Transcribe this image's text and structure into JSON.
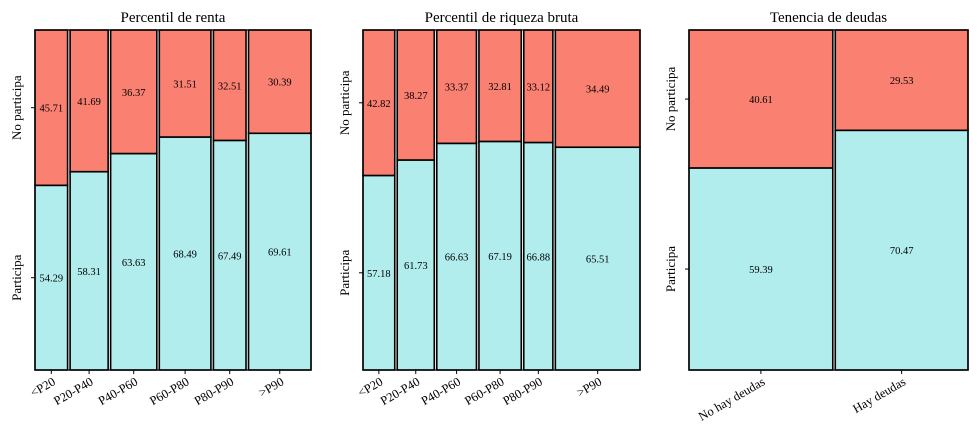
{
  "colors": {
    "no_participa": "#fa8072",
    "participa": "#b2eded",
    "border": "#000000"
  },
  "chart_data": [
    {
      "type": "mosaic",
      "title": "Percentil de renta",
      "ytick_labels": [
        "No participa",
        "Participa"
      ],
      "categories": [
        {
          "label": "<P20",
          "share": 0.12,
          "participa": 54.29,
          "no_participa": 45.71
        },
        {
          "label": "P20-P40",
          "share": 0.14,
          "participa": 58.31,
          "no_participa": 41.69
        },
        {
          "label": "P40-P60",
          "share": 0.17,
          "participa": 63.63,
          "no_participa": 36.37
        },
        {
          "label": "P60-P80",
          "share": 0.19,
          "participa": 68.49,
          "no_participa": 31.51
        },
        {
          "label": "P80-P90",
          "share": 0.12,
          "participa": 67.49,
          "no_participa": 32.51
        },
        {
          "label": ">P90",
          "share": 0.23,
          "participa": 69.61,
          "no_participa": 30.39
        }
      ]
    },
    {
      "type": "mosaic",
      "title": "Percentil de riqueza bruta",
      "ytick_labels": [
        "No participa",
        "Participa"
      ],
      "categories": [
        {
          "label": "<P20",
          "share": 0.12,
          "participa": 57.18,
          "no_participa": 42.82
        },
        {
          "label": "P20-P40",
          "share": 0.14,
          "participa": 61.73,
          "no_participa": 38.27
        },
        {
          "label": "P40-P60",
          "share": 0.15,
          "participa": 66.63,
          "no_participa": 33.37
        },
        {
          "label": "P60-P80",
          "share": 0.16,
          "participa": 67.19,
          "no_participa": 32.81
        },
        {
          "label": "P80-P90",
          "share": 0.11,
          "participa": 66.88,
          "no_participa": 33.12
        },
        {
          "label": ">P90",
          "share": 0.32,
          "participa": 65.51,
          "no_participa": 34.49
        }
      ]
    },
    {
      "type": "mosaic",
      "title": "Tenencia de deudas",
      "ytick_labels": [
        "No participa",
        "Participa"
      ],
      "categories": [
        {
          "label": "No hay deudas",
          "share": 0.52,
          "participa": 59.39,
          "no_participa": 40.61
        },
        {
          "label": "Hay deudas",
          "share": 0.48,
          "participa": 70.47,
          "no_participa": 29.53
        }
      ]
    }
  ]
}
